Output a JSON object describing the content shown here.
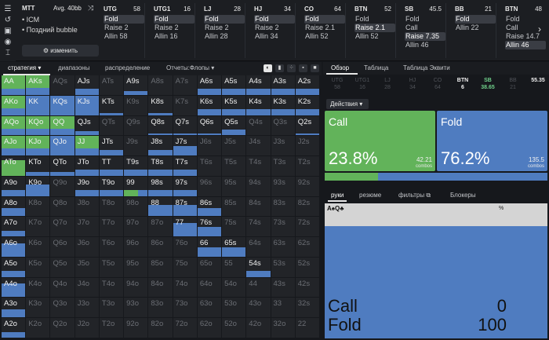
{
  "mtt": {
    "title": "MTT",
    "avg": "Avg. 40bb",
    "bullets": [
      "ICM",
      "Поздний bubble"
    ],
    "change_label": "изменить"
  },
  "positions": [
    {
      "name": "UTG",
      "stack": "58",
      "actions": [
        "Fold",
        "Raise 2",
        "Allin 58"
      ],
      "selected": 0
    },
    {
      "name": "UTG1",
      "stack": "16",
      "actions": [
        "Fold",
        "Raise 2",
        "Allin 16"
      ],
      "selected": 0
    },
    {
      "name": "LJ",
      "stack": "28",
      "actions": [
        "Fold",
        "Raise 2",
        "Allin 28"
      ],
      "selected": 0
    },
    {
      "name": "HJ",
      "stack": "34",
      "actions": [
        "Fold",
        "Raise 2",
        "Allin 34"
      ],
      "selected": 0
    },
    {
      "name": "CO",
      "stack": "64",
      "actions": [
        "Fold",
        "Raise 2.1",
        "Allin 52"
      ],
      "selected": 0
    },
    {
      "name": "BTN",
      "stack": "52",
      "actions": [
        "Fold",
        "Raise 2.1",
        "Allin 52"
      ],
      "selected": 1
    },
    {
      "name": "SB",
      "stack": "45.5",
      "actions": [
        "Fold",
        "Call",
        "Raise 7.35",
        "Allin 46"
      ],
      "selected": 2
    },
    {
      "name": "BB",
      "stack": "21",
      "actions": [
        "Fold",
        "Allin 22"
      ],
      "selected": 0
    },
    {
      "name": "BTN",
      "stack": "48",
      "actions": [
        "Fold",
        "Call",
        "Raise 14.7",
        "Allin 46"
      ],
      "selected": 3
    }
  ],
  "left_tabs": [
    "стратегия",
    "диапазоны",
    "распределение",
    "Отчеты:Флопы"
  ],
  "right_tabs": [
    "Обзор",
    "Таблица",
    "Таблица Эквити"
  ],
  "strip": [
    {
      "name": "UTG",
      "val": "58"
    },
    {
      "name": "UTG1",
      "val": "16"
    },
    {
      "name": "LJ",
      "val": "28"
    },
    {
      "name": "HJ",
      "val": "34"
    },
    {
      "name": "CO",
      "val": "64"
    },
    {
      "name": "BTN",
      "val": "6"
    },
    {
      "name": "SB",
      "val": "38.65"
    },
    {
      "name": "BB",
      "val": "21"
    },
    {
      "name": "",
      "val": "55.35"
    }
  ],
  "actions_label": "Действия",
  "summary": {
    "call": {
      "name": "Call",
      "pct": "23.8%",
      "combos": "42.21",
      "combos_label": "combos",
      "fraction": 0.238
    },
    "fold": {
      "name": "Fold",
      "pct": "76.2%",
      "combos": "135.5",
      "combos_label": "combos"
    }
  },
  "bottom_tabs": [
    "руки",
    "резюме",
    "фильтры",
    "Блокеры"
  ],
  "hand": {
    "name": "A♠Q♣",
    "pct_header": "%",
    "blue_fraction": 0.83,
    "rows": [
      {
        "label": "Call",
        "value": "0"
      },
      {
        "label": "Fold",
        "value": "100"
      }
    ]
  },
  "ranks": [
    "A",
    "K",
    "Q",
    "J",
    "T",
    "9",
    "8",
    "7",
    "6",
    "5",
    "4",
    "3",
    "2"
  ],
  "grid": {
    "rows": [
      [
        [
          1,
          0,
          "s"
        ],
        [
          1,
          0,
          "g"
        ],
        [
          0,
          1,
          "b"
        ],
        [
          0.3,
          0,
          "b"
        ],
        [
          0,
          0,
          ""
        ],
        [
          0.2,
          0,
          "b"
        ],
        [
          0,
          0,
          ""
        ],
        [
          0,
          0,
          ""
        ],
        [
          0.3,
          0,
          "b"
        ],
        [
          0.3,
          0,
          "b"
        ],
        [
          0.3,
          0,
          "b"
        ],
        [
          0.3,
          0,
          "b"
        ],
        [
          0.3,
          0,
          "b"
        ]
      ],
      [
        [
          1,
          0,
          "g"
        ],
        [
          1,
          0,
          "b"
        ],
        [
          1,
          0,
          "b"
        ],
        [
          1,
          0,
          "b"
        ],
        [
          0.1,
          0,
          "b"
        ],
        [
          0,
          0,
          ""
        ],
        [
          0.1,
          0,
          "b"
        ],
        [
          0,
          0,
          ""
        ],
        [
          0.3,
          0,
          "b"
        ],
        [
          0.3,
          0,
          "b"
        ],
        [
          0.3,
          0,
          "b"
        ],
        [
          0.3,
          0,
          "b"
        ],
        [
          0.3,
          0,
          "b"
        ]
      ],
      [
        [
          1,
          0,
          "g"
        ],
        [
          1,
          0,
          "g"
        ],
        [
          1,
          0,
          "g"
        ],
        [
          0.2,
          0,
          "b"
        ],
        [
          0,
          0,
          ""
        ],
        [
          0,
          0,
          ""
        ],
        [
          0.1,
          0,
          "b"
        ],
        [
          0.1,
          0,
          "b"
        ],
        [
          0.1,
          0,
          "b"
        ],
        [
          0.3,
          0,
          "b"
        ],
        [
          0,
          0,
          ""
        ],
        [
          0,
          0,
          ""
        ],
        [
          0.1,
          0,
          "b"
        ]
      ],
      [
        [
          1,
          0,
          "g"
        ],
        [
          1,
          0,
          "g"
        ],
        [
          1,
          0,
          "b"
        ],
        [
          1,
          0,
          "g"
        ],
        [
          0.3,
          0,
          "b"
        ],
        [
          0,
          0,
          ""
        ],
        [
          0.3,
          0,
          "b"
        ],
        [
          0.5,
          0,
          "b"
        ],
        [
          0,
          0,
          ""
        ],
        [
          0,
          0,
          ""
        ],
        [
          0,
          0,
          ""
        ],
        [
          0,
          0,
          ""
        ],
        [
          0,
          0,
          ""
        ]
      ],
      [
        [
          0.8,
          0,
          "g"
        ],
        [
          0.2,
          0,
          "b"
        ],
        [
          0.2,
          0,
          "b"
        ],
        [
          0.3,
          0,
          "b"
        ],
        [
          0.3,
          0,
          "b"
        ],
        [
          0.3,
          0,
          "b"
        ],
        [
          0.3,
          0,
          "b"
        ],
        [
          0.3,
          0,
          "b"
        ],
        [
          0,
          0,
          ""
        ],
        [
          0,
          0,
          ""
        ],
        [
          0,
          0,
          ""
        ],
        [
          0,
          0,
          ""
        ],
        [
          0,
          0,
          ""
        ]
      ],
      [
        [
          0.3,
          0,
          "b"
        ],
        [
          0.6,
          0,
          "b"
        ],
        [
          0,
          0,
          ""
        ],
        [
          0.3,
          0,
          "b"
        ],
        [
          0.3,
          0,
          "b"
        ],
        [
          0.3,
          0,
          "x"
        ],
        [
          0.3,
          0,
          "b"
        ],
        [
          0.3,
          0,
          "b"
        ],
        [
          0,
          0,
          ""
        ],
        [
          0,
          0,
          ""
        ],
        [
          0,
          0,
          ""
        ],
        [
          0,
          0,
          ""
        ],
        [
          0,
          0,
          ""
        ]
      ],
      [
        [
          0.4,
          0,
          "b"
        ],
        [
          0,
          0,
          ""
        ],
        [
          0,
          0,
          ""
        ],
        [
          0,
          0,
          ""
        ],
        [
          0,
          0,
          ""
        ],
        [
          0,
          0,
          ""
        ],
        [
          0.6,
          0,
          "b"
        ],
        [
          0.6,
          0,
          "b"
        ],
        [
          0.4,
          0,
          "b"
        ],
        [
          0,
          0,
          ""
        ],
        [
          0,
          0,
          ""
        ],
        [
          0,
          0,
          ""
        ],
        [
          0,
          0,
          ""
        ]
      ],
      [
        [
          0.3,
          0,
          "b"
        ],
        [
          0,
          0,
          ""
        ],
        [
          0,
          0,
          ""
        ],
        [
          0,
          0,
          ""
        ],
        [
          0,
          0,
          ""
        ],
        [
          0,
          0,
          ""
        ],
        [
          0,
          0,
          ""
        ],
        [
          0.7,
          0,
          "b"
        ],
        [
          0.5,
          0,
          "b"
        ],
        [
          0,
          0,
          ""
        ],
        [
          0,
          0,
          ""
        ],
        [
          0,
          0,
          ""
        ],
        [
          0,
          0,
          ""
        ]
      ],
      [
        [
          0.7,
          0,
          "b"
        ],
        [
          0,
          0,
          ""
        ],
        [
          0,
          0,
          ""
        ],
        [
          0,
          0,
          ""
        ],
        [
          0,
          0,
          ""
        ],
        [
          0,
          0,
          ""
        ],
        [
          0,
          0,
          ""
        ],
        [
          0,
          0,
          ""
        ],
        [
          0.5,
          0,
          "b"
        ],
        [
          0.5,
          0,
          "b"
        ],
        [
          0,
          0,
          ""
        ],
        [
          0,
          0,
          ""
        ],
        [
          0,
          0,
          ""
        ]
      ],
      [
        [
          0.3,
          0,
          "b"
        ],
        [
          0,
          0,
          ""
        ],
        [
          0,
          0,
          ""
        ],
        [
          0,
          0,
          ""
        ],
        [
          0,
          0,
          ""
        ],
        [
          0,
          0,
          ""
        ],
        [
          0,
          0,
          ""
        ],
        [
          0,
          0,
          ""
        ],
        [
          0,
          0,
          ""
        ],
        [
          0,
          0,
          ""
        ],
        [
          0.3,
          0,
          "b"
        ],
        [
          0,
          0,
          ""
        ],
        [
          0,
          0,
          ""
        ]
      ],
      [
        [
          0.7,
          0,
          "b"
        ],
        [
          0,
          0,
          ""
        ],
        [
          0,
          0,
          ""
        ],
        [
          0,
          0,
          ""
        ],
        [
          0,
          0,
          ""
        ],
        [
          0,
          0,
          ""
        ],
        [
          0,
          0,
          ""
        ],
        [
          0,
          0,
          ""
        ],
        [
          0,
          0,
          ""
        ],
        [
          0,
          0,
          ""
        ],
        [
          0,
          0,
          ""
        ],
        [
          0,
          0,
          ""
        ],
        [
          0,
          0,
          ""
        ]
      ],
      [
        [
          0.4,
          0,
          "b"
        ],
        [
          0,
          0,
          ""
        ],
        [
          0,
          0,
          ""
        ],
        [
          0,
          0,
          ""
        ],
        [
          0,
          0,
          ""
        ],
        [
          0,
          0,
          ""
        ],
        [
          0,
          0,
          ""
        ],
        [
          0,
          0,
          ""
        ],
        [
          0,
          0,
          ""
        ],
        [
          0,
          0,
          ""
        ],
        [
          0,
          0,
          ""
        ],
        [
          0,
          0,
          ""
        ],
        [
          0,
          0,
          ""
        ]
      ],
      [
        [
          0.3,
          0,
          "b"
        ],
        [
          0,
          0,
          ""
        ],
        [
          0,
          0,
          ""
        ],
        [
          0,
          0,
          ""
        ],
        [
          0,
          0,
          ""
        ],
        [
          0,
          0,
          ""
        ],
        [
          0,
          0,
          ""
        ],
        [
          0,
          0,
          ""
        ],
        [
          0,
          0,
          ""
        ],
        [
          0,
          0,
          ""
        ],
        [
          0,
          0,
          ""
        ],
        [
          0,
          0,
          ""
        ],
        [
          0,
          0,
          ""
        ]
      ]
    ]
  },
  "colors": {
    "call": "#62b35a",
    "fold": "#4f7cc0",
    "cell": "#222428"
  }
}
